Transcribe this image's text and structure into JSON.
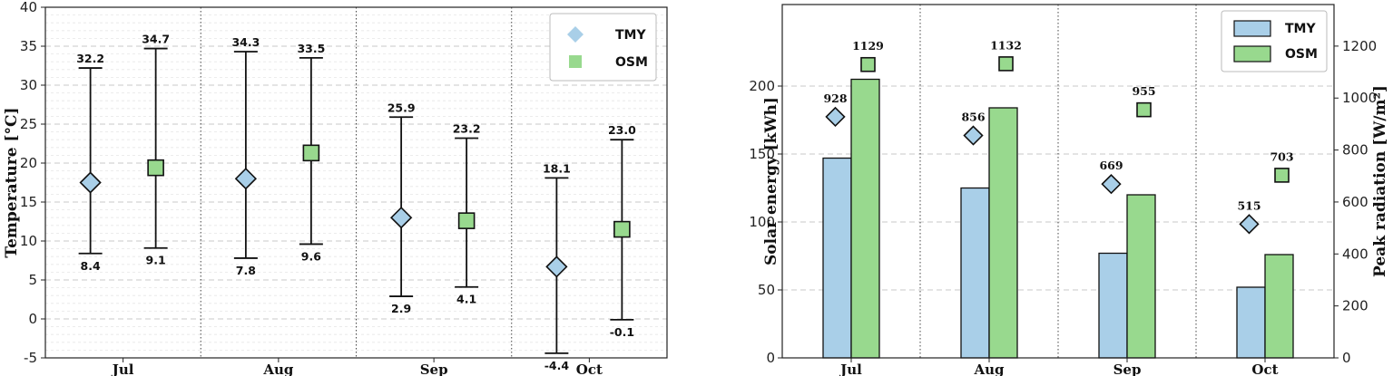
{
  "colors": {
    "tmy": "#a9cfe8",
    "osm": "#98d98e",
    "edge": "#111111"
  },
  "chart_data": [
    {
      "type": "errorbar",
      "ylabel": "Temperature [°C]",
      "ylim": [
        -5,
        40
      ],
      "yticks": [
        -5,
        0,
        5,
        10,
        15,
        20,
        25,
        30,
        35,
        40
      ],
      "categories": [
        "Jul",
        "Aug",
        "Sep",
        "Oct"
      ],
      "grid": "horizontal dashed, vertical dotted month separators",
      "legend": {
        "position": "top-right",
        "entries": [
          "TMY",
          "OSM"
        ]
      },
      "series": [
        {
          "name": "TMY",
          "marker": "diamond",
          "mean": [
            17.5,
            18.0,
            13.0,
            6.7
          ],
          "max": [
            32.2,
            34.3,
            25.9,
            18.1
          ],
          "min": [
            8.4,
            7.8,
            2.9,
            -4.4
          ],
          "max_labels": [
            "32.2",
            "34.3",
            "25.9",
            "18.1"
          ],
          "min_labels": [
            "8.4",
            "7.8",
            "2.9",
            "-4.4"
          ]
        },
        {
          "name": "OSM",
          "marker": "square",
          "mean": [
            19.4,
            21.3,
            12.6,
            11.5
          ],
          "max": [
            34.7,
            33.5,
            23.2,
            23.0
          ],
          "min": [
            9.1,
            9.6,
            4.1,
            -0.1
          ],
          "max_labels": [
            "34.7",
            "33.5",
            "23.2",
            "23.0"
          ],
          "min_labels": [
            "9.1",
            "9.6",
            "4.1",
            "-0.1"
          ]
        }
      ]
    },
    {
      "type": "bar",
      "ylabel": "Solar energy [kWh]",
      "ylim": [
        0,
        260
      ],
      "yticks": [
        0,
        50,
        100,
        150,
        200
      ],
      "y2label": "Peak radiation [W/m²]",
      "y2lim": [
        0,
        1360
      ],
      "y2ticks": [
        0,
        200,
        400,
        600,
        800,
        1000,
        1200
      ],
      "categories": [
        "Jul",
        "Aug",
        "Sep",
        "Oct"
      ],
      "grid": "horizontal dashed, vertical dotted month separators",
      "legend": {
        "position": "top-right",
        "entries": [
          "TMY",
          "OSM"
        ]
      },
      "series": [
        {
          "name": "TMY",
          "energy": [
            147,
            125,
            77,
            52
          ],
          "peak": [
            928,
            856,
            669,
            515
          ],
          "peak_labels": [
            "928",
            "856",
            "669",
            "515"
          ]
        },
        {
          "name": "OSM",
          "energy": [
            205,
            184,
            120,
            76
          ],
          "peak": [
            1129,
            1132,
            955,
            703
          ],
          "peak_labels": [
            "1129",
            "1132",
            "955",
            "703"
          ]
        }
      ]
    }
  ]
}
